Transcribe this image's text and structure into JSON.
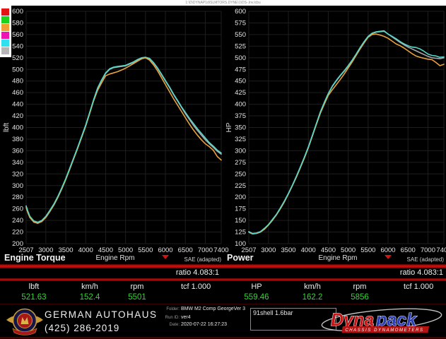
{
  "header": {
    "path": "1:\\D\\DYNAP1d\\SLMTORS.DYNE\\1\\DS-.lnv.lcbu"
  },
  "legend_swatches": [
    {
      "name": "run-slot-red",
      "color": "#e51414"
    },
    {
      "name": "run-slot-green",
      "color": "#1fd11f"
    },
    {
      "name": "run-slot-orange",
      "color": "#f0a033"
    },
    {
      "name": "run-slot-magenta",
      "color": "#ee14b4"
    },
    {
      "name": "run-slot-cyan",
      "color": "#30e0ee"
    },
    {
      "name": "run-slot-gray",
      "color": "#b5b5b5"
    }
  ],
  "chart_data": [
    {
      "type": "line",
      "title": "Engine Torque",
      "xlabel": "Engine Rpm",
      "ylabel": "lbft",
      "sae_note": "SAE (adapted)",
      "ratio_label": "ratio 4.083:1",
      "xlim": [
        2507,
        7400
      ],
      "ylim": [
        200,
        600
      ],
      "y_tick_step": 20,
      "x_ticks": [
        2507,
        3000,
        3500,
        4000,
        4500,
        5000,
        5500,
        6000,
        6500,
        7000,
        7400
      ],
      "marker_rpm": 6000,
      "grid": true,
      "rpm": [
        2507,
        2550,
        2600,
        2700,
        2800,
        2900,
        3000,
        3100,
        3200,
        3300,
        3400,
        3500,
        3600,
        3700,
        3800,
        3900,
        4000,
        4100,
        4200,
        4300,
        4400,
        4500,
        4600,
        4700,
        4800,
        4900,
        5000,
        5100,
        5200,
        5300,
        5400,
        5500,
        5600,
        5700,
        5800,
        5900,
        6000,
        6100,
        6200,
        6300,
        6400,
        6500,
        6600,
        6700,
        6800,
        6900,
        7000,
        7100,
        7200,
        7300,
        7400
      ],
      "series": [
        {
          "name": "run-gray",
          "color": "#a8a8a8",
          "values": [
            264,
            255,
            246,
            238,
            236,
            239,
            246,
            256,
            267,
            280,
            295,
            311,
            329,
            347,
            365,
            384,
            403,
            425,
            447,
            467,
            481,
            493,
            500,
            503,
            504,
            505,
            506,
            509,
            512,
            516,
            519,
            520,
            518,
            511,
            502,
            491,
            480,
            469,
            457,
            446,
            435,
            424,
            414,
            404,
            395,
            387,
            379,
            372,
            366,
            359,
            354
          ]
        },
        {
          "name": "run-orange",
          "color": "#e8a23c",
          "values": [
            262,
            253,
            245,
            237,
            235,
            238,
            245,
            255,
            266,
            279,
            294,
            310,
            328,
            346,
            364,
            383,
            402,
            424,
            446,
            464,
            477,
            489,
            492,
            494,
            496,
            499,
            502,
            506,
            510,
            514,
            518,
            520,
            516,
            508,
            498,
            486,
            474,
            462,
            450,
            439,
            428,
            417,
            406,
            396,
            387,
            379,
            372,
            367,
            361,
            350,
            344
          ]
        },
        {
          "name": "run-cyan",
          "color": "#56d6c9",
          "values": [
            265,
            256,
            247,
            239,
            237,
            240,
            247,
            257,
            268,
            281,
            296,
            312,
            330,
            348,
            366,
            385,
            404,
            426,
            448,
            468,
            482,
            494,
            501,
            504,
            505,
            506,
            507,
            510,
            513,
            517,
            520,
            521,
            519,
            512,
            503,
            492,
            481,
            470,
            458,
            447,
            436,
            426,
            416,
            407,
            398,
            390,
            382,
            374,
            368,
            361,
            356
          ]
        }
      ]
    },
    {
      "type": "line",
      "title": "Power",
      "xlabel": "Engine Rpm",
      "ylabel": "HP",
      "sae_note": "SAE (adapted)",
      "ratio_label": "ratio 4.083:1",
      "xlim": [
        2507,
        7400
      ],
      "ylim": [
        100,
        600
      ],
      "y_tick_step": 25,
      "x_ticks": [
        2507,
        3000,
        3500,
        4000,
        4500,
        5000,
        5500,
        6000,
        6500,
        7000,
        7400
      ],
      "marker_rpm": 6000,
      "grid": true,
      "rpm": [
        2507,
        2550,
        2600,
        2700,
        2800,
        2900,
        3000,
        3100,
        3200,
        3300,
        3400,
        3500,
        3600,
        3700,
        3800,
        3900,
        4000,
        4100,
        4200,
        4300,
        4400,
        4500,
        4600,
        4700,
        4800,
        4900,
        5000,
        5100,
        5200,
        5300,
        5400,
        5500,
        5600,
        5700,
        5800,
        5900,
        6000,
        6100,
        6200,
        6300,
        6400,
        6500,
        6600,
        6700,
        6800,
        6900,
        7000,
        7100,
        7200,
        7300,
        7400
      ],
      "series": [
        {
          "name": "run-gray",
          "color": "#a8a8a8",
          "values": [
            125,
            123,
            121,
            122,
            125,
            132,
            140,
            151,
            162,
            176,
            191,
            207,
            225,
            244,
            264,
            285,
            307,
            332,
            357,
            382,
            403,
            422,
            438,
            450,
            461,
            471,
            482,
            494,
            507,
            521,
            534,
            545,
            552,
            555,
            556,
            557,
            551,
            545,
            539,
            533,
            528,
            523,
            519,
            515,
            511,
            507,
            503,
            500,
            499,
            498,
            500
          ]
        },
        {
          "name": "run-orange",
          "color": "#e8a23c",
          "values": [
            125,
            123,
            121,
            122,
            125,
            131,
            140,
            150,
            162,
            175,
            190,
            207,
            225,
            243,
            263,
            284,
            306,
            331,
            356,
            380,
            400,
            419,
            431,
            442,
            453,
            465,
            478,
            491,
            505,
            519,
            532,
            544,
            550,
            551,
            549,
            546,
            542,
            536,
            530,
            526,
            521,
            515,
            509,
            504,
            501,
            499,
            497,
            496,
            490,
            483,
            486
          ]
        },
        {
          "name": "run-cyan",
          "color": "#56d6c9",
          "values": [
            126,
            124,
            122,
            123,
            126,
            133,
            141,
            152,
            163,
            177,
            192,
            208,
            226,
            245,
            265,
            286,
            308,
            333,
            358,
            383,
            404,
            423,
            439,
            451,
            462,
            472,
            483,
            495,
            508,
            522,
            535,
            546,
            553,
            556,
            557,
            558,
            551,
            546,
            541,
            535,
            530,
            526,
            523,
            522,
            519,
            514,
            508,
            505,
            504,
            501,
            502
          ]
        }
      ]
    }
  ],
  "readouts": {
    "left": {
      "cols": [
        {
          "label": "lbft",
          "value": "521.63"
        },
        {
          "label": "km/h",
          "value": "152.4"
        },
        {
          "label": "rpm",
          "value": "5501"
        },
        {
          "label": "tcf 1.000",
          "value": ""
        }
      ]
    },
    "right": {
      "cols": [
        {
          "label": "HP",
          "value": "559.46"
        },
        {
          "label": "km/h",
          "value": "162.2"
        },
        {
          "label": "rpm",
          "value": "5856"
        },
        {
          "label": "tcf 1.000",
          "value": ""
        }
      ]
    }
  },
  "footer": {
    "shop_name": "GERMAN AUTOHAUS",
    "shop_phone": "(425) 286-2019",
    "folder_label": "Folder:",
    "folder_value": "BMW M2 Comp GeorgeVer 3",
    "runid_label": "Run ID:",
    "runid_value": "ver4",
    "date_label": "Date:",
    "date_value": "2020-07-22 16:27:23",
    "note_box": "91shell 1.6bar",
    "dynapack": {
      "word1": "Dyna",
      "word2": "pack",
      "word1_color": "#c41616",
      "word2_color": "#2b3db5",
      "tagline": "CHASSIS DYNAMOMETERS"
    }
  },
  "colors": {
    "accent_red_bar": "#c01010",
    "value_green": "#35d435",
    "grid": "#1e1e1e",
    "tick_text": "#e5e5e5"
  }
}
